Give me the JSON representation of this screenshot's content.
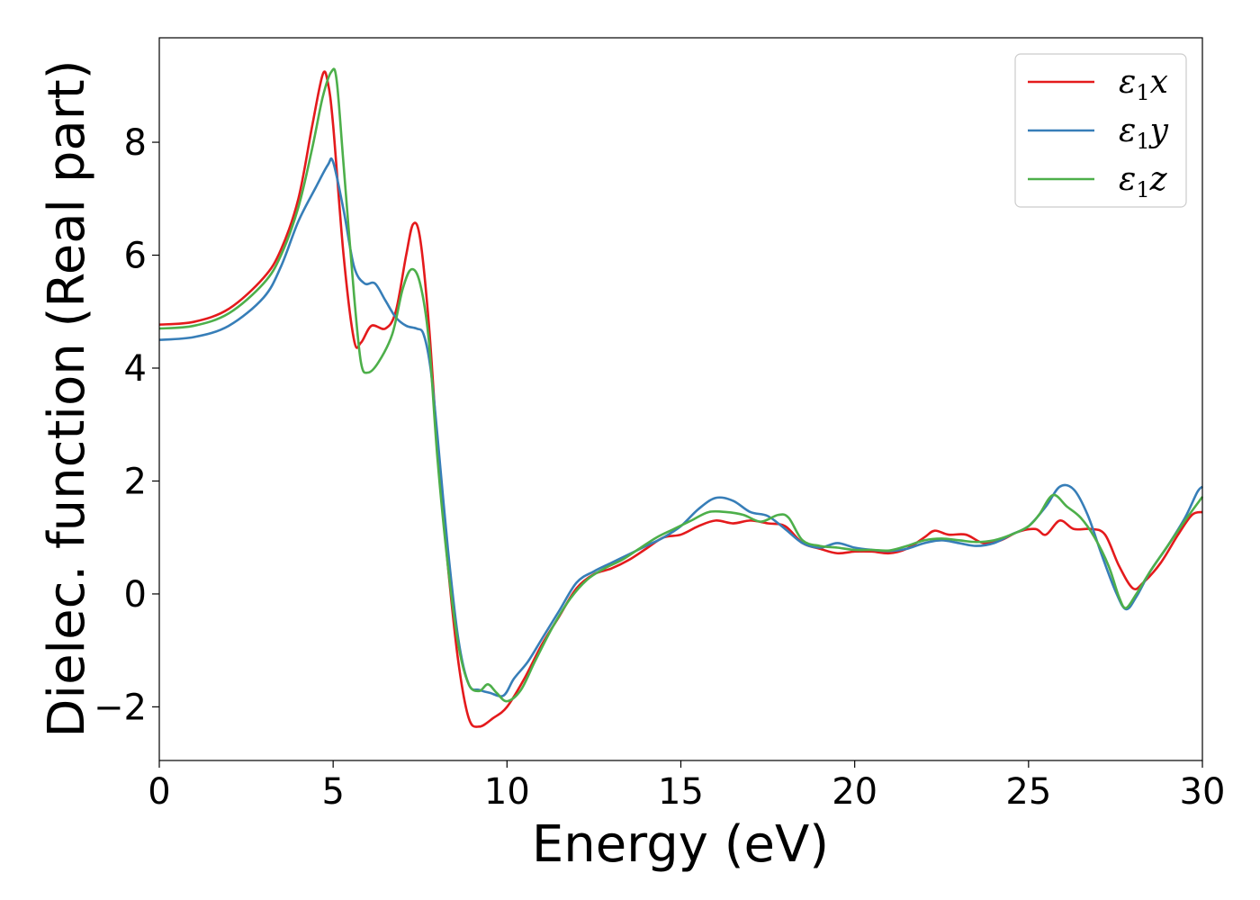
{
  "chart_data": {
    "type": "line",
    "xlabel": "Energy (eV)",
    "ylabel": "Dielec. function (Real part)",
    "xlim": [
      0,
      30
    ],
    "ylim": [
      -2.95,
      9.85
    ],
    "xticks": [
      0,
      5,
      10,
      15,
      20,
      25,
      30
    ],
    "xtick_labels": [
      "0",
      "5",
      "10",
      "15",
      "20",
      "25",
      "30"
    ],
    "yticks": [
      -2,
      0,
      2,
      4,
      6,
      8
    ],
    "ytick_labels": [
      "−2",
      "0",
      "2",
      "4",
      "6",
      "8"
    ],
    "grid": false,
    "legend_position": "top-right",
    "series": [
      {
        "name": "ε₁x",
        "color": "#e41a1c",
        "points": [
          [
            0,
            4.77
          ],
          [
            1,
            4.82
          ],
          [
            2,
            5.05
          ],
          [
            3,
            5.6
          ],
          [
            3.5,
            6.1
          ],
          [
            4,
            7.0
          ],
          [
            4.4,
            8.3
          ],
          [
            4.7,
            9.2
          ],
          [
            4.85,
            9.05
          ],
          [
            5,
            8.3
          ],
          [
            5.3,
            6.0
          ],
          [
            5.6,
            4.5
          ],
          [
            5.8,
            4.45
          ],
          [
            6.1,
            4.75
          ],
          [
            6.5,
            4.7
          ],
          [
            6.8,
            5.0
          ],
          [
            7.1,
            6.0
          ],
          [
            7.3,
            6.55
          ],
          [
            7.5,
            6.3
          ],
          [
            7.75,
            4.8
          ],
          [
            8.0,
            2.6
          ],
          [
            8.3,
            0.5
          ],
          [
            8.6,
            -1.2
          ],
          [
            8.9,
            -2.2
          ],
          [
            9.2,
            -2.35
          ],
          [
            9.6,
            -2.2
          ],
          [
            10.0,
            -2.0
          ],
          [
            10.5,
            -1.5
          ],
          [
            11.0,
            -0.9
          ],
          [
            11.5,
            -0.4
          ],
          [
            12.0,
            0.1
          ],
          [
            12.5,
            0.35
          ],
          [
            13.0,
            0.45
          ],
          [
            13.5,
            0.6
          ],
          [
            14.0,
            0.8
          ],
          [
            14.5,
            1.0
          ],
          [
            15.0,
            1.05
          ],
          [
            15.5,
            1.2
          ],
          [
            16.0,
            1.3
          ],
          [
            16.5,
            1.25
          ],
          [
            17.0,
            1.3
          ],
          [
            17.5,
            1.25
          ],
          [
            18.0,
            1.2
          ],
          [
            18.5,
            0.9
          ],
          [
            19.0,
            0.8
          ],
          [
            19.5,
            0.72
          ],
          [
            20.0,
            0.75
          ],
          [
            20.5,
            0.75
          ],
          [
            21.0,
            0.72
          ],
          [
            21.5,
            0.8
          ],
          [
            22.0,
            1.0
          ],
          [
            22.3,
            1.12
          ],
          [
            22.7,
            1.05
          ],
          [
            23.2,
            1.05
          ],
          [
            23.7,
            0.9
          ],
          [
            24.2,
            0.95
          ],
          [
            24.7,
            1.1
          ],
          [
            25.2,
            1.15
          ],
          [
            25.5,
            1.05
          ],
          [
            25.9,
            1.3
          ],
          [
            26.3,
            1.15
          ],
          [
            26.8,
            1.15
          ],
          [
            27.2,
            1.05
          ],
          [
            27.6,
            0.5
          ],
          [
            28.0,
            0.1
          ],
          [
            28.3,
            0.2
          ],
          [
            28.8,
            0.55
          ],
          [
            29.3,
            1.05
          ],
          [
            29.7,
            1.4
          ],
          [
            30.0,
            1.45
          ]
        ]
      },
      {
        "name": "ε₁y",
        "color": "#377eb8",
        "points": [
          [
            0,
            4.5
          ],
          [
            1,
            4.55
          ],
          [
            2,
            4.75
          ],
          [
            3,
            5.25
          ],
          [
            3.5,
            5.8
          ],
          [
            4,
            6.6
          ],
          [
            4.5,
            7.2
          ],
          [
            4.85,
            7.6
          ],
          [
            5.0,
            7.65
          ],
          [
            5.3,
            6.8
          ],
          [
            5.6,
            5.8
          ],
          [
            5.9,
            5.5
          ],
          [
            6.2,
            5.5
          ],
          [
            6.5,
            5.2
          ],
          [
            6.8,
            4.9
          ],
          [
            7.1,
            4.75
          ],
          [
            7.4,
            4.7
          ],
          [
            7.6,
            4.6
          ],
          [
            7.8,
            4.0
          ],
          [
            8.0,
            2.8
          ],
          [
            8.3,
            0.8
          ],
          [
            8.6,
            -0.8
          ],
          [
            8.9,
            -1.6
          ],
          [
            9.2,
            -1.7
          ],
          [
            9.5,
            -1.75
          ],
          [
            9.9,
            -1.8
          ],
          [
            10.2,
            -1.5
          ],
          [
            10.6,
            -1.2
          ],
          [
            11.0,
            -0.8
          ],
          [
            11.5,
            -0.3
          ],
          [
            12.0,
            0.2
          ],
          [
            12.5,
            0.4
          ],
          [
            13.0,
            0.55
          ],
          [
            13.5,
            0.7
          ],
          [
            14.0,
            0.85
          ],
          [
            14.5,
            1.0
          ],
          [
            15.0,
            1.2
          ],
          [
            15.5,
            1.5
          ],
          [
            16.0,
            1.7
          ],
          [
            16.5,
            1.65
          ],
          [
            17.0,
            1.45
          ],
          [
            17.5,
            1.38
          ],
          [
            18.0,
            1.15
          ],
          [
            18.5,
            0.9
          ],
          [
            19.0,
            0.82
          ],
          [
            19.5,
            0.9
          ],
          [
            20.0,
            0.82
          ],
          [
            20.5,
            0.78
          ],
          [
            21.0,
            0.76
          ],
          [
            21.5,
            0.8
          ],
          [
            22.0,
            0.9
          ],
          [
            22.5,
            0.95
          ],
          [
            23.0,
            0.9
          ],
          [
            23.5,
            0.85
          ],
          [
            24.0,
            0.9
          ],
          [
            24.5,
            1.05
          ],
          [
            25.0,
            1.2
          ],
          [
            25.5,
            1.55
          ],
          [
            25.9,
            1.9
          ],
          [
            26.3,
            1.85
          ],
          [
            26.7,
            1.4
          ],
          [
            27.1,
            0.7
          ],
          [
            27.5,
            0.05
          ],
          [
            27.8,
            -0.27
          ],
          [
            28.1,
            -0.05
          ],
          [
            28.5,
            0.4
          ],
          [
            29.0,
            0.85
          ],
          [
            29.5,
            1.35
          ],
          [
            29.85,
            1.8
          ],
          [
            30.0,
            1.9
          ]
        ]
      },
      {
        "name": "ε₁z",
        "color": "#4daf4a",
        "points": [
          [
            0,
            4.7
          ],
          [
            1,
            4.75
          ],
          [
            2,
            4.97
          ],
          [
            3,
            5.5
          ],
          [
            3.5,
            6.0
          ],
          [
            4,
            6.85
          ],
          [
            4.4,
            7.9
          ],
          [
            4.7,
            8.8
          ],
          [
            4.95,
            9.25
          ],
          [
            5.1,
            9.1
          ],
          [
            5.3,
            7.6
          ],
          [
            5.6,
            5.3
          ],
          [
            5.8,
            4.1
          ],
          [
            6.0,
            3.92
          ],
          [
            6.3,
            4.1
          ],
          [
            6.7,
            4.6
          ],
          [
            7.0,
            5.4
          ],
          [
            7.25,
            5.75
          ],
          [
            7.5,
            5.5
          ],
          [
            7.75,
            4.5
          ],
          [
            8.0,
            2.4
          ],
          [
            8.3,
            0.5
          ],
          [
            8.6,
            -0.9
          ],
          [
            8.9,
            -1.6
          ],
          [
            9.2,
            -1.72
          ],
          [
            9.45,
            -1.6
          ],
          [
            9.7,
            -1.75
          ],
          [
            10.0,
            -1.9
          ],
          [
            10.4,
            -1.7
          ],
          [
            10.8,
            -1.2
          ],
          [
            11.3,
            -0.6
          ],
          [
            11.8,
            -0.1
          ],
          [
            12.3,
            0.25
          ],
          [
            12.8,
            0.45
          ],
          [
            13.3,
            0.6
          ],
          [
            13.8,
            0.8
          ],
          [
            14.3,
            1.0
          ],
          [
            14.8,
            1.15
          ],
          [
            15.3,
            1.3
          ],
          [
            15.8,
            1.45
          ],
          [
            16.3,
            1.45
          ],
          [
            16.8,
            1.4
          ],
          [
            17.3,
            1.28
          ],
          [
            17.8,
            1.4
          ],
          [
            18.1,
            1.35
          ],
          [
            18.5,
            0.95
          ],
          [
            19.0,
            0.85
          ],
          [
            19.5,
            0.82
          ],
          [
            20.0,
            0.78
          ],
          [
            20.5,
            0.78
          ],
          [
            21.0,
            0.77
          ],
          [
            21.5,
            0.85
          ],
          [
            22.0,
            0.95
          ],
          [
            22.5,
            0.98
          ],
          [
            23.0,
            0.95
          ],
          [
            23.5,
            0.92
          ],
          [
            24.0,
            0.95
          ],
          [
            24.5,
            1.05
          ],
          [
            25.0,
            1.2
          ],
          [
            25.3,
            1.4
          ],
          [
            25.7,
            1.75
          ],
          [
            26.1,
            1.55
          ],
          [
            26.5,
            1.35
          ],
          [
            26.9,
            1.0
          ],
          [
            27.3,
            0.5
          ],
          [
            27.6,
            -0.05
          ],
          [
            27.8,
            -0.25
          ],
          [
            28.1,
            0.0
          ],
          [
            28.5,
            0.4
          ],
          [
            29.0,
            0.85
          ],
          [
            29.5,
            1.3
          ],
          [
            30.0,
            1.72
          ]
        ]
      }
    ]
  }
}
